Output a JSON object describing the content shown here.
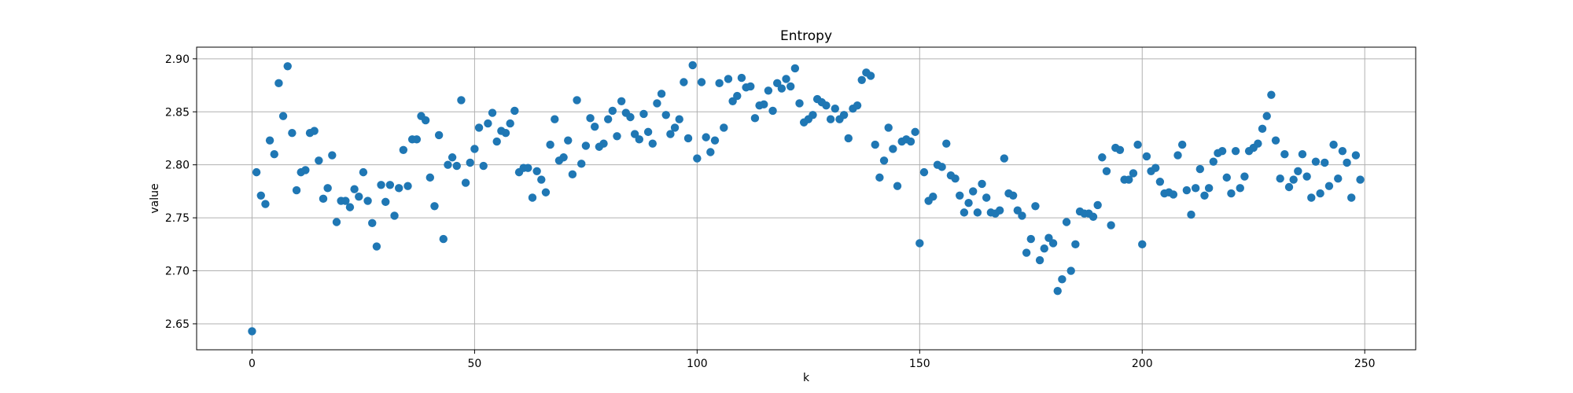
{
  "chart_data": {
    "type": "scatter",
    "title": "Entropy",
    "xlabel": "k",
    "ylabel": "value",
    "xlim": [
      -12.45,
      261.45
    ],
    "ylim": [
      2.6255,
      2.911
    ],
    "xticks": [
      0,
      50,
      100,
      150,
      200,
      250
    ],
    "xtick_labels": [
      "0",
      "50",
      "100",
      "150",
      "200",
      "250"
    ],
    "yticks": [
      2.65,
      2.7,
      2.75,
      2.8,
      2.85,
      2.9
    ],
    "ytick_labels": [
      "2.65",
      "2.70",
      "2.75",
      "2.80",
      "2.85",
      "2.90"
    ],
    "grid": true,
    "series": [
      {
        "color": "#1f77b4",
        "x": [
          0,
          1,
          2,
          3,
          4,
          5,
          6,
          7,
          8,
          9,
          10,
          11,
          12,
          13,
          14,
          15,
          16,
          17,
          18,
          19,
          20,
          21,
          22,
          23,
          24,
          25,
          26,
          27,
          28,
          29,
          30,
          31,
          32,
          33,
          34,
          35,
          36,
          37,
          38,
          39,
          40,
          41,
          42,
          43,
          44,
          45,
          46,
          47,
          48,
          49,
          50,
          51,
          52,
          53,
          54,
          55,
          56,
          57,
          58,
          59,
          60,
          61,
          62,
          63,
          64,
          65,
          66,
          67,
          68,
          69,
          70,
          71,
          72,
          73,
          74,
          75,
          76,
          77,
          78,
          79,
          80,
          81,
          82,
          83,
          84,
          85,
          86,
          87,
          88,
          89,
          90,
          91,
          92,
          93,
          94,
          95,
          96,
          97,
          98,
          99,
          100,
          101,
          102,
          103,
          104,
          105,
          106,
          107,
          108,
          109,
          110,
          111,
          112,
          113,
          114,
          115,
          116,
          117,
          118,
          119,
          120,
          121,
          122,
          123,
          124,
          125,
          126,
          127,
          128,
          129,
          130,
          131,
          132,
          133,
          134,
          135,
          136,
          137,
          138,
          139,
          140,
          141,
          142,
          143,
          144,
          145,
          146,
          147,
          148,
          149,
          150,
          151,
          152,
          153,
          154,
          155,
          156,
          157,
          158,
          159,
          160,
          161,
          162,
          163,
          164,
          165,
          166,
          167,
          168,
          169,
          170,
          171,
          172,
          173,
          174,
          175,
          176,
          177,
          178,
          179,
          180,
          181,
          182,
          183,
          184,
          185,
          186,
          187,
          188,
          189,
          190,
          191,
          192,
          193,
          194,
          195,
          196,
          197,
          198,
          199,
          200,
          201,
          202,
          203,
          204,
          205,
          206,
          207,
          208,
          209,
          210,
          211,
          212,
          213,
          214,
          215,
          216,
          217,
          218,
          219,
          220,
          221,
          222,
          223,
          224,
          225,
          226,
          227,
          228,
          229,
          230,
          231,
          232,
          233,
          234,
          235,
          236,
          237,
          238,
          239,
          240,
          241,
          242,
          243,
          244,
          245,
          246,
          247,
          248,
          249
        ],
        "y": [
          2.643,
          2.793,
          2.771,
          2.763,
          2.823,
          2.81,
          2.877,
          2.846,
          2.893,
          2.83,
          2.776,
          2.793,
          2.795,
          2.83,
          2.832,
          2.804,
          2.768,
          2.778,
          2.809,
          2.746,
          2.766,
          2.766,
          2.76,
          2.777,
          2.77,
          2.793,
          2.766,
          2.745,
          2.723,
          2.781,
          2.765,
          2.781,
          2.752,
          2.778,
          2.814,
          2.78,
          2.824,
          2.824,
          2.846,
          2.842,
          2.788,
          2.761,
          2.828,
          2.73,
          2.8,
          2.807,
          2.799,
          2.861,
          2.783,
          2.802,
          2.815,
          2.835,
          2.799,
          2.839,
          2.849,
          2.822,
          2.832,
          2.83,
          2.839,
          2.851,
          2.793,
          2.797,
          2.797,
          2.769,
          2.794,
          2.786,
          2.774,
          2.819,
          2.843,
          2.804,
          2.807,
          2.823,
          2.791,
          2.861,
          2.801,
          2.818,
          2.844,
          2.836,
          2.817,
          2.82,
          2.843,
          2.851,
          2.827,
          2.86,
          2.849,
          2.845,
          2.829,
          2.824,
          2.848,
          2.831,
          2.82,
          2.858,
          2.867,
          2.847,
          2.829,
          2.835,
          2.843,
          2.878,
          2.825,
          2.894,
          2.806,
          2.878,
          2.826,
          2.812,
          2.823,
          2.877,
          2.835,
          2.881,
          2.86,
          2.865,
          2.882,
          2.873,
          2.874,
          2.844,
          2.856,
          2.857,
          2.87,
          2.851,
          2.877,
          2.872,
          2.881,
          2.874,
          2.891,
          2.858,
          2.84,
          2.843,
          2.847,
          2.862,
          2.859,
          2.856,
          2.843,
          2.853,
          2.843,
          2.847,
          2.825,
          2.853,
          2.856,
          2.88,
          2.887,
          2.884,
          2.819,
          2.788,
          2.804,
          2.835,
          2.815,
          2.78,
          2.822,
          2.824,
          2.822,
          2.831,
          2.726,
          2.793,
          2.766,
          2.77,
          2.8,
          2.798,
          2.82,
          2.79,
          2.787,
          2.771,
          2.755,
          2.764,
          2.775,
          2.755,
          2.782,
          2.769,
          2.755,
          2.754,
          2.757,
          2.806,
          2.773,
          2.771,
          2.757,
          2.752,
          2.717,
          2.73,
          2.761,
          2.71,
          2.721,
          2.731,
          2.726,
          2.681,
          2.692,
          2.746,
          2.7,
          2.725,
          2.756,
          2.754,
          2.754,
          2.751,
          2.762,
          2.807,
          2.794,
          2.743,
          2.816,
          2.814,
          2.786,
          2.786,
          2.792,
          2.819,
          2.725,
          2.808,
          2.794,
          2.797,
          2.784,
          2.773,
          2.774,
          2.772,
          2.809,
          2.819,
          2.776,
          2.753,
          2.778,
          2.796,
          2.771,
          2.778,
          2.803,
          2.811,
          2.813,
          2.788,
          2.773,
          2.813,
          2.778,
          2.789,
          2.813,
          2.816,
          2.82,
          2.834,
          2.846,
          2.866,
          2.823,
          2.787,
          2.81,
          2.779,
          2.786,
          2.794,
          2.81,
          2.789,
          2.769,
          2.803,
          2.773,
          2.802,
          2.78,
          2.819,
          2.787,
          2.813,
          2.802,
          2.769,
          2.809,
          2.786
        ]
      }
    ]
  }
}
